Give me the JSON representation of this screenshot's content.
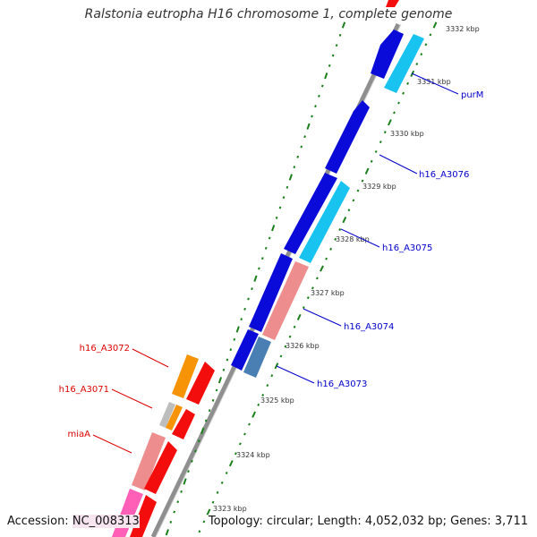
{
  "title": "Ralstonia eutropha H16 chromosome 1, complete genome",
  "footer": {
    "accession_label": "Accession:",
    "accession_value": "NC_008313",
    "topology_text": "Topology: circular; Length: 4,052,032 bp; Genes: 3,711"
  },
  "colors": {
    "backbone": "#8f8f8f",
    "tick": "#1b7f1b",
    "scale_text": "#333333",
    "forward_label": "#0000cc",
    "reverse_label": "#dd0000",
    "gene_blue": "#0b0bd9",
    "gene_cyan": "#19c3f0",
    "gene_salmon": "#ee8d8d",
    "gene_steel": "#4a7fb3",
    "gene_red": "#f40d0d",
    "gene_orange": "#f79406",
    "gene_gray": "#bdbdbd",
    "gene_pink": "#ff5fb7"
  },
  "scale_labels": [
    "3332 kbp",
    "3331 kbp",
    "3330 kbp",
    "3329 kbp",
    "3328 kbp",
    "3327 kbp",
    "3326 kbp",
    "3325 kbp",
    "3324 kbp",
    "3323 kbp"
  ],
  "forward_gene_labels": [
    "purM",
    "h16_A3076",
    "h16_A3075",
    "h16_A3074",
    "h16_A3073"
  ],
  "reverse_gene_labels": [
    "h16_A3072",
    "h16_A3071",
    "miaA"
  ]
}
